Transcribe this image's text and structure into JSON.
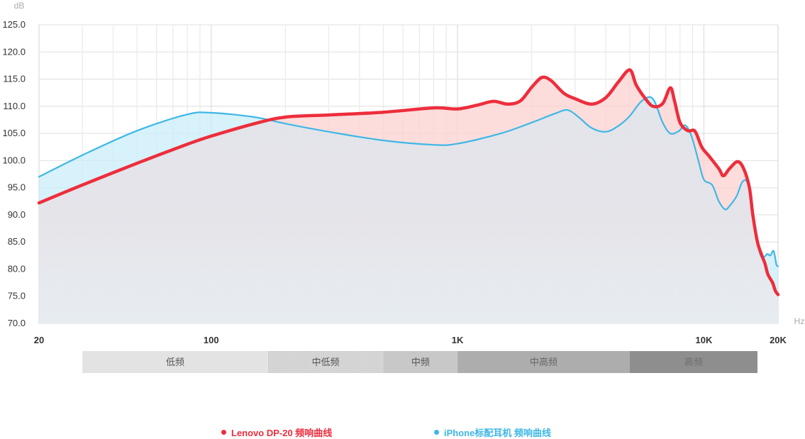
{
  "chart_data": {
    "type": "line",
    "xscale": "log",
    "xlim": [
      20,
      20000
    ],
    "ylim": [
      70,
      125
    ],
    "y_unit": "dB",
    "x_unit": "Hz",
    "y_ticks": [
      "125.0",
      "120.0",
      "115.0",
      "110.0",
      "105.0",
      "100.0",
      "95.0",
      "90.0",
      "85.0",
      "80.0",
      "75.0",
      "70.0"
    ],
    "x_tick_labels": [
      {
        "value": 20,
        "label": "20"
      },
      {
        "value": 100,
        "label": "100"
      },
      {
        "value": 1000,
        "label": "1K"
      },
      {
        "value": 10000,
        "label": "10K"
      },
      {
        "value": 20000,
        "label": "20K"
      }
    ],
    "grid": true,
    "legend_position": "bottom",
    "bands": [
      {
        "label": "低频",
        "from": 30,
        "to": 170,
        "color": "#e3e3e3",
        "text_color": "#555555"
      },
      {
        "label": "中低频",
        "from": 170,
        "to": 500,
        "color": "#d3d3d3",
        "text_color": "#555555"
      },
      {
        "label": "中频",
        "from": 500,
        "to": 1000,
        "color": "#c8c8c8",
        "text_color": "#555555"
      },
      {
        "label": "中高频",
        "from": 1000,
        "to": 5000,
        "color": "#adadad",
        "text_color": "#666666"
      },
      {
        "label": "高频",
        "from": 5000,
        "to": 16500,
        "color": "#8e8e8e",
        "text_color": "#6f6f6f"
      }
    ],
    "series": [
      {
        "name": "Lenovo DP-20 频响曲线",
        "color": "#ee2d3c",
        "fill": "#fbd2d0",
        "points": [
          [
            20,
            92.2
          ],
          [
            30,
            95.5
          ],
          [
            50,
            99.5
          ],
          [
            80,
            103
          ],
          [
            100,
            104.5
          ],
          [
            150,
            106.8
          ],
          [
            200,
            108
          ],
          [
            300,
            108.4
          ],
          [
            500,
            108.9
          ],
          [
            800,
            109.7
          ],
          [
            1000,
            109.5
          ],
          [
            1200,
            110.2
          ],
          [
            1400,
            110.9
          ],
          [
            1600,
            110.4
          ],
          [
            1800,
            111
          ],
          [
            2000,
            113.5
          ],
          [
            2200,
            115.3
          ],
          [
            2400,
            114.7
          ],
          [
            2700,
            112.4
          ],
          [
            3000,
            111.4
          ],
          [
            3500,
            110.4
          ],
          [
            4000,
            111.6
          ],
          [
            4500,
            114.5
          ],
          [
            5000,
            116.7
          ],
          [
            5300,
            114
          ],
          [
            5700,
            111.8
          ],
          [
            6200,
            110
          ],
          [
            6800,
            110.5
          ],
          [
            7300,
            113.4
          ],
          [
            7600,
            111
          ],
          [
            8000,
            107
          ],
          [
            8600,
            105.5
          ],
          [
            9200,
            105.4
          ],
          [
            9800,
            102.5
          ],
          [
            10500,
            100.8
          ],
          [
            11500,
            98.5
          ],
          [
            12000,
            97.2
          ],
          [
            12700,
            98.5
          ],
          [
            13700,
            99.8
          ],
          [
            14500,
            98.5
          ],
          [
            15300,
            95
          ],
          [
            15800,
            90
          ],
          [
            16500,
            85
          ],
          [
            17200,
            82.5
          ],
          [
            17700,
            81
          ],
          [
            18200,
            79
          ],
          [
            19000,
            77.5
          ],
          [
            19500,
            76
          ],
          [
            20000,
            75.3
          ]
        ]
      },
      {
        "name": "iPhone标配耳机 频响曲线",
        "color": "#3fb7e6",
        "fill": "#c9eef8",
        "points": [
          [
            20,
            97
          ],
          [
            30,
            101
          ],
          [
            50,
            105.5
          ],
          [
            80,
            108.5
          ],
          [
            100,
            108.8
          ],
          [
            150,
            108
          ],
          [
            200,
            106.8
          ],
          [
            300,
            105.3
          ],
          [
            500,
            103.7
          ],
          [
            800,
            102.9
          ],
          [
            1000,
            103.1
          ],
          [
            1500,
            105
          ],
          [
            2000,
            107
          ],
          [
            2500,
            108.7
          ],
          [
            2800,
            109.3
          ],
          [
            3100,
            108
          ],
          [
            3500,
            106
          ],
          [
            4000,
            105.3
          ],
          [
            4500,
            106.4
          ],
          [
            5000,
            108.2
          ],
          [
            5600,
            111
          ],
          [
            6200,
            111.4
          ],
          [
            6800,
            107
          ],
          [
            7300,
            105
          ],
          [
            7900,
            105.4
          ],
          [
            8400,
            106.5
          ],
          [
            8900,
            104.5
          ],
          [
            9500,
            100
          ],
          [
            10000,
            96.5
          ],
          [
            10800,
            95.5
          ],
          [
            11500,
            92.5
          ],
          [
            12200,
            91
          ],
          [
            12800,
            91.8
          ],
          [
            13600,
            93.5
          ],
          [
            14300,
            96
          ],
          [
            15000,
            96
          ],
          [
            15700,
            92
          ],
          [
            16300,
            86
          ],
          [
            17000,
            82.5
          ],
          [
            17600,
            82.3
          ],
          [
            18100,
            82.8
          ],
          [
            18600,
            82.5
          ],
          [
            19100,
            83.4
          ],
          [
            19400,
            82.5
          ],
          [
            19700,
            80.8
          ],
          [
            20000,
            80.5
          ]
        ]
      }
    ]
  },
  "legend": [
    {
      "label": "Lenovo DP-20 频响曲线",
      "color": "#ee2d3c"
    },
    {
      "label": "iPhone标配耳机 频响曲线",
      "color": "#3fb7e6"
    }
  ]
}
